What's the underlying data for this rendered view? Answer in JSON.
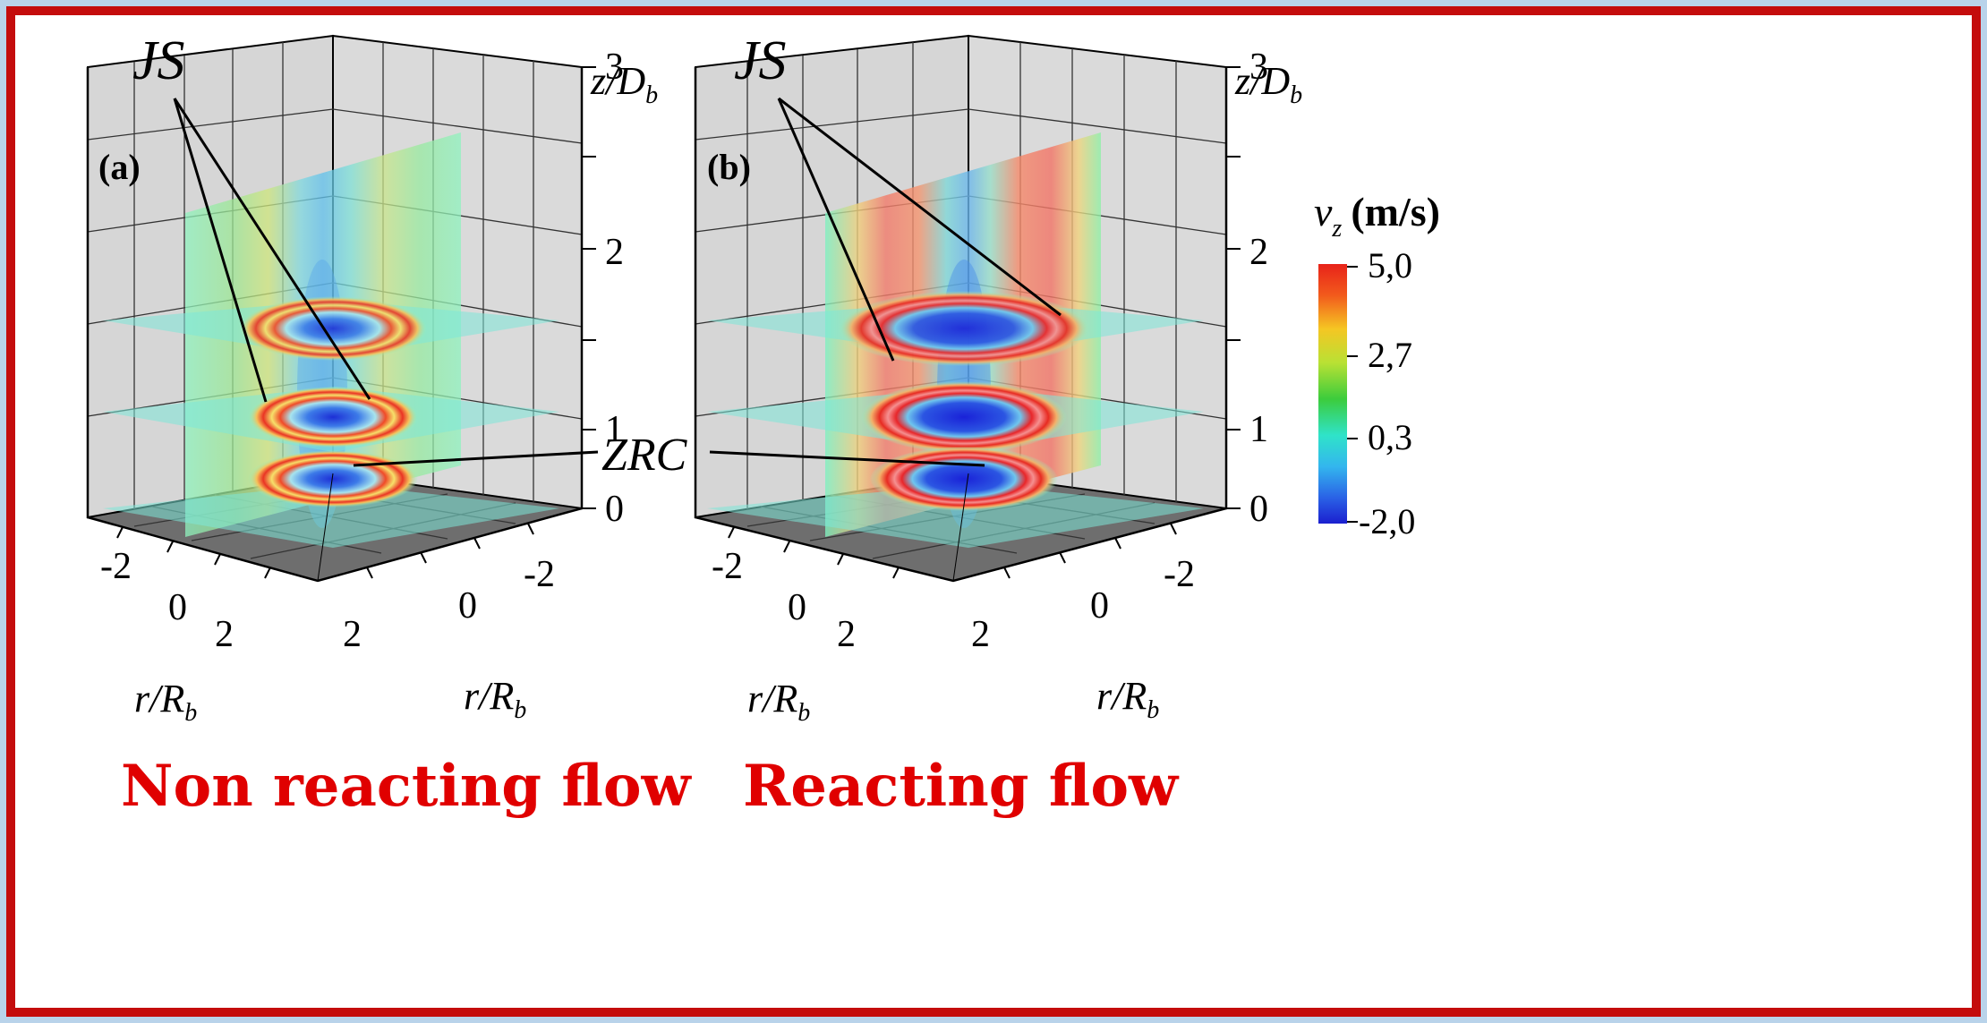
{
  "panels": [
    {
      "id": "a",
      "label": "(a)",
      "js_label": "JS",
      "caption": "Non reacting flow",
      "z_ticks": [
        "3",
        "2",
        "1",
        "0"
      ],
      "z_axis_label": {
        "main": "z/D",
        "sub": "b"
      },
      "r_ticks_left": [
        "-2",
        "0",
        "2"
      ],
      "r_ticks_right": [
        "2",
        "0",
        "-2"
      ],
      "r_axis_label": {
        "main": "r/R",
        "sub": "b"
      }
    },
    {
      "id": "b",
      "label": "(b)",
      "js_label": "JS",
      "caption": "Reacting flow",
      "z_ticks": [
        "3",
        "2",
        "1",
        "0"
      ],
      "z_axis_label": {
        "main": "z/D",
        "sub": "b"
      },
      "r_ticks_left": [
        "-2",
        "0",
        "2"
      ],
      "r_ticks_right": [
        "2",
        "0",
        "-2"
      ],
      "r_axis_label": {
        "main": "r/R",
        "sub": "b"
      }
    }
  ],
  "zrc_label": "ZRC",
  "colorbar": {
    "variable": "v",
    "subscript": "z",
    "unit": "(m/s)",
    "ticks": [
      "5,0",
      "2,7",
      "0,3",
      "-2,0"
    ]
  }
}
